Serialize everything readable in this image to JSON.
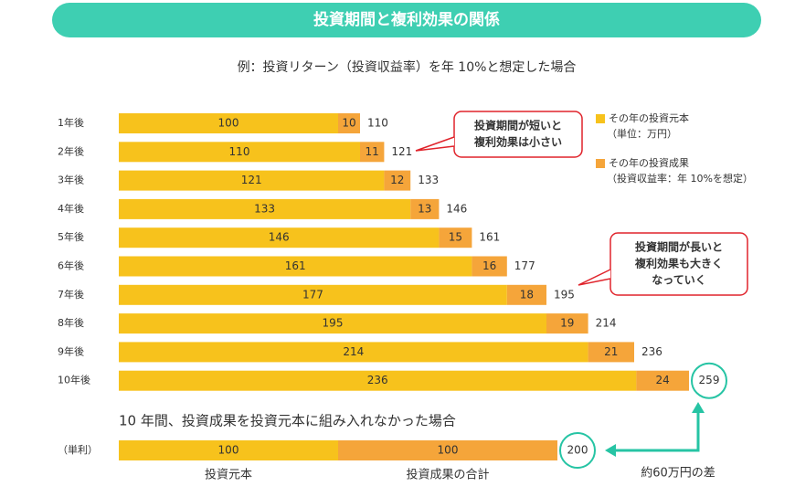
{
  "banner": "投資期間と複利効果の関係",
  "chart_data": [
    {
      "type": "bar",
      "orientation": "horizontal",
      "stacked": true,
      "title": "例：投資リターン（投資収益率）を年 10%と想定した場合",
      "categories": [
        "1年後",
        "2年後",
        "3年後",
        "4年後",
        "5年後",
        "6年後",
        "7年後",
        "8年後",
        "9年後",
        "10年後"
      ],
      "series": [
        {
          "name": "その年の投資元本",
          "note": "（単位：万円）",
          "color": "#f7c21c",
          "values": [
            100,
            110,
            121,
            133,
            146,
            161,
            177,
            195,
            214,
            236
          ]
        },
        {
          "name": "その年の投資成果",
          "note": "（投資収益率：年 10%を想定）",
          "color": "#f5a53a",
          "values": [
            10,
            11,
            12,
            13,
            15,
            16,
            18,
            19,
            21,
            24
          ]
        }
      ],
      "totals": [
        110,
        121,
        133,
        146,
        161,
        177,
        195,
        214,
        236,
        259
      ],
      "callouts": [
        {
          "lines": [
            "投資期間が短いと",
            "複利効果は小さい"
          ]
        },
        {
          "lines": [
            "投資期間が長いと",
            "複利効果も大きく",
            "なっていく"
          ]
        }
      ]
    },
    {
      "type": "bar",
      "orientation": "horizontal",
      "stacked": true,
      "title": "10 年間、投資成果を投資元本に組み入れなかった場合",
      "categories": [
        "（単利）"
      ],
      "series": [
        {
          "name": "投資元本",
          "color": "#f7c21c",
          "values": [
            100
          ]
        },
        {
          "name": "投資成果の合計",
          "color": "#f5a53a",
          "values": [
            100
          ]
        }
      ],
      "totals": [
        200
      ],
      "annotation": "約60万円の差"
    }
  ]
}
